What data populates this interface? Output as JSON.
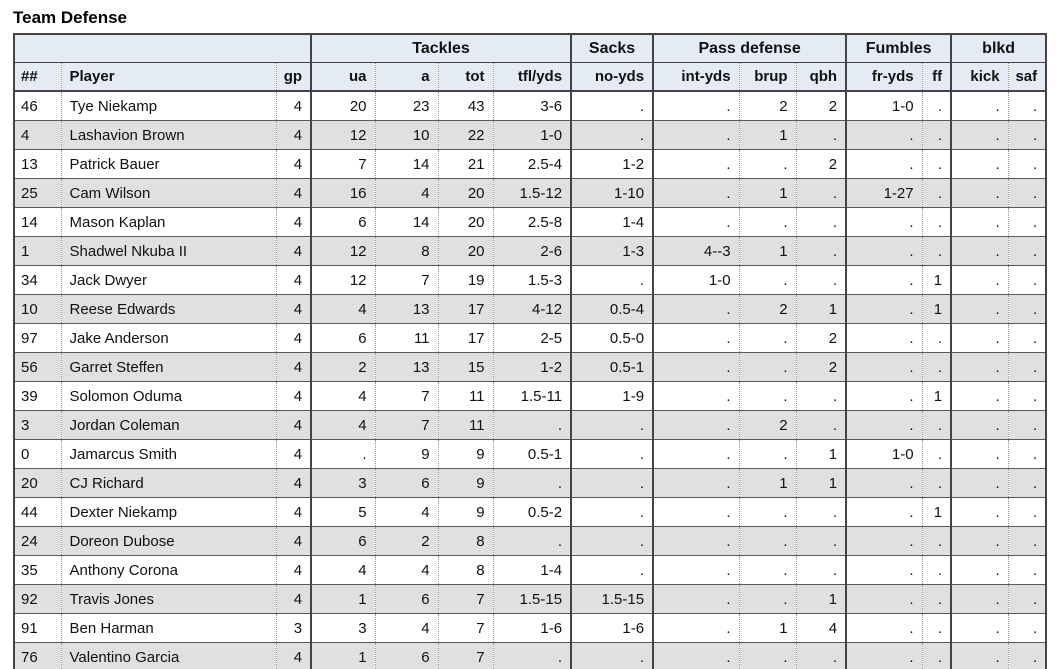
{
  "title": "Team Defense",
  "table": {
    "groups": [
      {
        "label": "",
        "span": 3
      },
      {
        "label": "Tackles",
        "span": 4
      },
      {
        "label": "Sacks",
        "span": 1
      },
      {
        "label": "Pass defense",
        "span": 3
      },
      {
        "label": "Fumbles",
        "span": 2
      },
      {
        "label": "blkd",
        "span": 2
      }
    ],
    "columns": [
      "##",
      "Player",
      "gp",
      "ua",
      "a",
      "tot",
      "tfl/yds",
      "no-yds",
      "int-yds",
      "brup",
      "qbh",
      "fr-yds",
      "ff",
      "kick",
      "saf"
    ],
    "rows": [
      [
        "46",
        "Tye Niekamp",
        "4",
        "20",
        "23",
        "43",
        "3-6",
        ".",
        ".",
        "2",
        "2",
        "1-0",
        ".",
        ".",
        "."
      ],
      [
        "4",
        "Lashavion Brown",
        "4",
        "12",
        "10",
        "22",
        "1-0",
        ".",
        ".",
        "1",
        ".",
        ".",
        ".",
        ".",
        "."
      ],
      [
        "13",
        "Patrick Bauer",
        "4",
        "7",
        "14",
        "21",
        "2.5-4",
        "1-2",
        ".",
        ".",
        "2",
        ".",
        ".",
        ".",
        "."
      ],
      [
        "25",
        "Cam Wilson",
        "4",
        "16",
        "4",
        "20",
        "1.5-12",
        "1-10",
        ".",
        "1",
        ".",
        "1-27",
        ".",
        ".",
        "."
      ],
      [
        "14",
        "Mason Kaplan",
        "4",
        "6",
        "14",
        "20",
        "2.5-8",
        "1-4",
        ".",
        ".",
        ".",
        ".",
        ".",
        ".",
        "."
      ],
      [
        "1",
        "Shadwel Nkuba II",
        "4",
        "12",
        "8",
        "20",
        "2-6",
        "1-3",
        "4--3",
        "1",
        ".",
        ".",
        ".",
        ".",
        "."
      ],
      [
        "34",
        "Jack Dwyer",
        "4",
        "12",
        "7",
        "19",
        "1.5-3",
        ".",
        "1-0",
        ".",
        ".",
        ".",
        "1",
        ".",
        "."
      ],
      [
        "10",
        "Reese Edwards",
        "4",
        "4",
        "13",
        "17",
        "4-12",
        "0.5-4",
        ".",
        "2",
        "1",
        ".",
        "1",
        ".",
        "."
      ],
      [
        "97",
        "Jake Anderson",
        "4",
        "6",
        "11",
        "17",
        "2-5",
        "0.5-0",
        ".",
        ".",
        "2",
        ".",
        ".",
        ".",
        "."
      ],
      [
        "56",
        "Garret Steffen",
        "4",
        "2",
        "13",
        "15",
        "1-2",
        "0.5-1",
        ".",
        ".",
        "2",
        ".",
        ".",
        ".",
        "."
      ],
      [
        "39",
        "Solomon Oduma",
        "4",
        "4",
        "7",
        "11",
        "1.5-11",
        "1-9",
        ".",
        ".",
        ".",
        ".",
        "1",
        ".",
        "."
      ],
      [
        "3",
        "Jordan Coleman",
        "4",
        "4",
        "7",
        "11",
        ".",
        ".",
        ".",
        "2",
        ".",
        ".",
        ".",
        ".",
        "."
      ],
      [
        "0",
        "Jamarcus Smith",
        "4",
        ".",
        "9",
        "9",
        "0.5-1",
        ".",
        ".",
        ".",
        "1",
        "1-0",
        ".",
        ".",
        "."
      ],
      [
        "20",
        "CJ Richard",
        "4",
        "3",
        "6",
        "9",
        ".",
        ".",
        ".",
        "1",
        "1",
        ".",
        ".",
        ".",
        "."
      ],
      [
        "44",
        "Dexter Niekamp",
        "4",
        "5",
        "4",
        "9",
        "0.5-2",
        ".",
        ".",
        ".",
        ".",
        ".",
        "1",
        ".",
        "."
      ],
      [
        "24",
        "Doreon Dubose",
        "4",
        "6",
        "2",
        "8",
        ".",
        ".",
        ".",
        ".",
        ".",
        ".",
        ".",
        ".",
        "."
      ],
      [
        "35",
        "Anthony Corona",
        "4",
        "4",
        "4",
        "8",
        "1-4",
        ".",
        ".",
        ".",
        ".",
        ".",
        ".",
        ".",
        "."
      ],
      [
        "92",
        "Travis Jones",
        "4",
        "1",
        "6",
        "7",
        "1.5-15",
        "1.5-15",
        ".",
        ".",
        "1",
        ".",
        ".",
        ".",
        "."
      ],
      [
        "91",
        "Ben Harman",
        "3",
        "3",
        "4",
        "7",
        "1-6",
        "1-6",
        ".",
        "1",
        "4",
        ".",
        ".",
        ".",
        "."
      ],
      [
        "76",
        "Valentino Garcia",
        "4",
        "1",
        "6",
        "7",
        ".",
        ".",
        ".",
        ".",
        ".",
        ".",
        ".",
        ".",
        "."
      ]
    ]
  },
  "colors": {
    "header_bg": "#e5ebf5",
    "alt_row_bg": "#e1e0e0",
    "border_solid": "#444444",
    "border_dotted": "#999999",
    "text": "#111111"
  }
}
